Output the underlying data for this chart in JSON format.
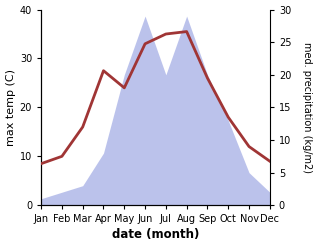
{
  "months": [
    "Jan",
    "Feb",
    "Mar",
    "Apr",
    "May",
    "Jun",
    "Jul",
    "Aug",
    "Sep",
    "Oct",
    "Nov",
    "Dec"
  ],
  "temperature": [
    8.5,
    10.0,
    16.0,
    27.5,
    24.0,
    33.0,
    35.0,
    35.5,
    26.0,
    18.0,
    12.0,
    9.0
  ],
  "precipitation": [
    1.0,
    2.0,
    3.0,
    8.0,
    20.0,
    29.0,
    20.0,
    29.0,
    20.0,
    13.0,
    5.0,
    2.0
  ],
  "temp_color": "#a03535",
  "precip_color": "#b0b8e8",
  "temp_ylim": [
    0,
    40
  ],
  "precip_ylim": [
    0,
    30
  ],
  "temp_yticks": [
    0,
    10,
    20,
    30,
    40
  ],
  "precip_yticks": [
    0,
    5,
    10,
    15,
    20,
    25,
    30
  ],
  "xlabel": "date (month)",
  "ylabel_left": "max temp (C)",
  "ylabel_right": "med. precipitation (kg/m2)"
}
